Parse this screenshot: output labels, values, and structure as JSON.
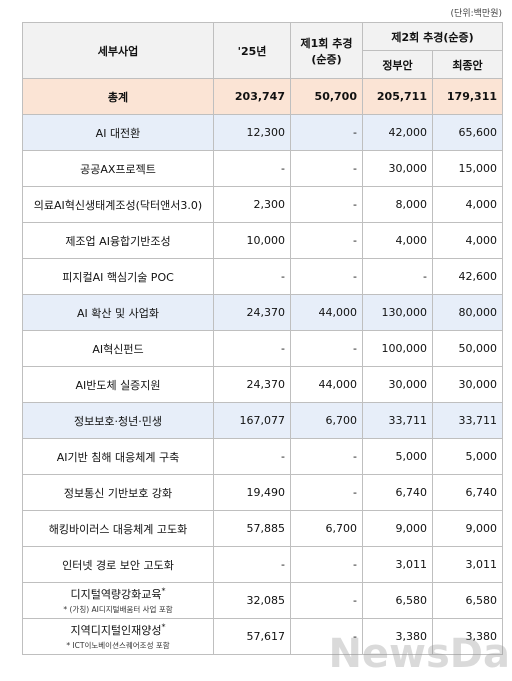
{
  "unit": "(단위:백만원)",
  "header": {
    "name": "세부사업",
    "y25": "'25년",
    "supp1": "제1회 추경",
    "supp1_sub": "(순증)",
    "supp2": "제2회 추경(순증)",
    "gov": "정부안",
    "final": "최종안"
  },
  "rows": [
    {
      "kind": "total",
      "name": "총계",
      "cells": [
        "203,747",
        "50,700",
        "205,711",
        "179,311"
      ]
    },
    {
      "kind": "group",
      "name": "AI 대전환",
      "cells": [
        "12,300",
        "-",
        "42,000",
        "65,600"
      ]
    },
    {
      "kind": "item",
      "name": "공공AX프로젝트",
      "cells": [
        "-",
        "-",
        "30,000",
        "15,000"
      ]
    },
    {
      "kind": "item",
      "name": "의료AI혁신생태계조성(닥터앤서3.0)",
      "cells": [
        "2,300",
        "-",
        "8,000",
        "4,000"
      ]
    },
    {
      "kind": "item",
      "name": "제조업 AI융합기반조성",
      "cells": [
        "10,000",
        "-",
        "4,000",
        "4,000"
      ]
    },
    {
      "kind": "item",
      "name": "피지컬AI 핵심기술 POC",
      "cells": [
        "-",
        "-",
        "-",
        "42,600"
      ]
    },
    {
      "kind": "group",
      "name": "AI 확산 및 사업화",
      "cells": [
        "24,370",
        "44,000",
        "130,000",
        "80,000"
      ]
    },
    {
      "kind": "item",
      "name": "AI혁신펀드",
      "cells": [
        "-",
        "-",
        "100,000",
        "50,000"
      ]
    },
    {
      "kind": "item",
      "name": "AI반도체 실증지원",
      "cells": [
        "24,370",
        "44,000",
        "30,000",
        "30,000"
      ]
    },
    {
      "kind": "group",
      "name": "정보보호·청년·민생",
      "cells": [
        "167,077",
        "6,700",
        "33,711",
        "33,711"
      ]
    },
    {
      "kind": "item",
      "name": "AI기반 침해 대응체계 구축",
      "cells": [
        "-",
        "-",
        "5,000",
        "5,000"
      ]
    },
    {
      "kind": "item",
      "name": "정보통신 기반보호 강화",
      "cells": [
        "19,490",
        "-",
        "6,740",
        "6,740"
      ]
    },
    {
      "kind": "item",
      "name": "해킹바이러스 대응체계 고도화",
      "cells": [
        "57,885",
        "6,700",
        "9,000",
        "9,000"
      ]
    },
    {
      "kind": "item",
      "name": "인터넷 경로 보안 고도화",
      "cells": [
        "-",
        "-",
        "3,011",
        "3,011"
      ]
    },
    {
      "kind": "item",
      "name": "디지털역량강화교육",
      "mark": "*",
      "note": "* (가칭) AI디지털배움터 사업 포함",
      "cells": [
        "32,085",
        "-",
        "6,580",
        "6,580"
      ]
    },
    {
      "kind": "item",
      "name": "지역디지털인재양성",
      "mark": "*",
      "note": "* ICT이노베이션스퀘어조성 포함",
      "cells": [
        "57,617",
        "-",
        "3,380",
        "3,380"
      ]
    }
  ],
  "watermark": "NewsDa"
}
